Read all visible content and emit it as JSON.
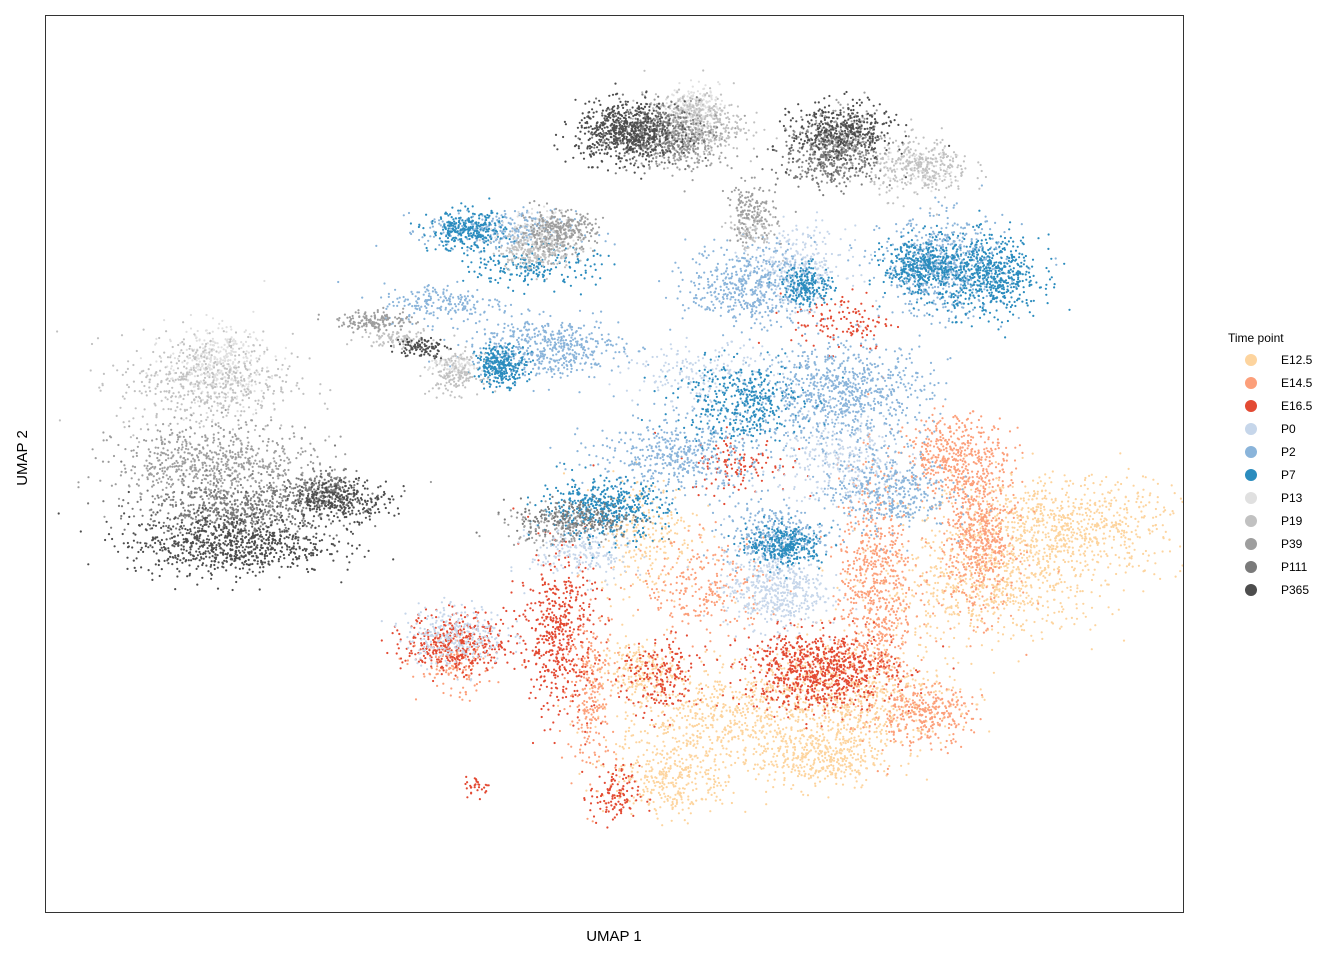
{
  "chart_data": {
    "type": "scatter",
    "title": "",
    "xlabel": "UMAP 1",
    "ylabel": "UMAP 2",
    "xticks": "none",
    "yticks": "none",
    "grid": false,
    "legend": {
      "title": "Time point",
      "placement": "right",
      "entries": [
        {
          "label": "E12.5",
          "color": "#FDD49E"
        },
        {
          "label": "E14.5",
          "color": "#FC9F7A"
        },
        {
          "label": "E16.5",
          "color": "#E34A33"
        },
        {
          "label": "P0",
          "color": "#C6D6EA"
        },
        {
          "label": "P2",
          "color": "#8AB4DA"
        },
        {
          "label": "P7",
          "color": "#2B8CBE"
        },
        {
          "label": "P13",
          "color": "#E0E0E0"
        },
        {
          "label": "P19",
          "color": "#C1C1C1"
        },
        {
          "label": "P39",
          "color": "#9E9E9E"
        },
        {
          "label": "P111",
          "color": "#7A7A7A"
        },
        {
          "label": "P365",
          "color": "#4D4D4D"
        }
      ]
    },
    "xlim": [
      0,
      100
    ],
    "ylim": [
      0,
      100
    ],
    "series": [
      {
        "name": "E12.5",
        "clusters": [
          [
            89,
            43,
            10,
            5,
            900
          ],
          [
            83,
            36,
            9,
            5,
            600
          ],
          [
            71,
            24,
            8,
            6,
            700
          ],
          [
            60,
            22,
            9,
            5,
            600
          ],
          [
            55,
            15,
            5,
            4,
            350
          ],
          [
            68,
            17,
            5,
            3,
            350
          ],
          [
            53,
            42,
            4,
            6,
            250
          ],
          [
            52,
            27,
            3,
            3,
            200
          ]
        ]
      },
      {
        "name": "E14.5",
        "clusters": [
          [
            73,
            36,
            3,
            12,
            700
          ],
          [
            82,
            42,
            3,
            8,
            600
          ],
          [
            80,
            51,
            4,
            4,
            400
          ],
          [
            77,
            22,
            4,
            3,
            300
          ],
          [
            48,
            25,
            2,
            8,
            250
          ],
          [
            58,
            36,
            5,
            5,
            250
          ],
          [
            36,
            27,
            3,
            3,
            120
          ]
        ]
      },
      {
        "name": "E16.5",
        "clusters": [
          [
            68,
            27,
            6,
            4,
            800
          ],
          [
            45,
            31,
            3,
            8,
            500
          ],
          [
            36,
            30,
            4,
            3,
            400
          ],
          [
            54,
            26,
            3,
            4,
            200
          ],
          [
            50,
            13,
            2,
            3,
            120
          ],
          [
            70,
            66,
            4,
            3,
            120
          ],
          [
            38,
            14,
            1,
            1,
            30
          ],
          [
            61,
            50,
            4,
            3,
            120
          ]
        ]
      },
      {
        "name": "P0",
        "clusters": [
          [
            64,
            36,
            4,
            4,
            500
          ],
          [
            36,
            31,
            4,
            3,
            300
          ],
          [
            70,
            50,
            5,
            5,
            300
          ],
          [
            66,
            72,
            4,
            4,
            300
          ],
          [
            47,
            40,
            4,
            3,
            200
          ],
          [
            58,
            60,
            6,
            3,
            200
          ]
        ]
      },
      {
        "name": "P2",
        "clusters": [
          [
            70,
            58,
            7,
            5,
            800
          ],
          [
            79,
            72,
            5,
            5,
            600
          ],
          [
            44,
            63,
            6,
            3,
            500
          ],
          [
            56,
            51,
            7,
            4,
            500
          ],
          [
            62,
            70,
            5,
            4,
            500
          ],
          [
            40,
            76,
            6,
            2,
            300
          ],
          [
            35,
            68,
            5,
            2,
            200
          ],
          [
            64,
            42,
            4,
            3,
            300
          ],
          [
            74,
            47,
            5,
            4,
            400
          ]
        ]
      },
      {
        "name": "P7",
        "clusters": [
          [
            83,
            71,
            4,
            4,
            600
          ],
          [
            77,
            72,
            3,
            3,
            400
          ],
          [
            40,
            61,
            2,
            2,
            300
          ],
          [
            49,
            45,
            5,
            3,
            500
          ],
          [
            65,
            41,
            3,
            2,
            300
          ],
          [
            37,
            76,
            3,
            2,
            300
          ],
          [
            67,
            70,
            2,
            2,
            200
          ],
          [
            61,
            57,
            5,
            4,
            400
          ],
          [
            43,
            72,
            5,
            2,
            200
          ]
        ]
      },
      {
        "name": "P13",
        "clusters": [
          [
            15,
            61,
            4,
            4,
            400
          ],
          [
            57,
            90,
            2,
            2,
            200
          ],
          [
            44,
            76,
            3,
            2,
            150
          ],
          [
            77,
            83,
            3,
            2,
            100
          ],
          [
            36,
            61,
            2,
            1,
            100
          ]
        ]
      },
      {
        "name": "P19",
        "clusters": [
          [
            14,
            59,
            7,
            5,
            500
          ],
          [
            57,
            88,
            4,
            3,
            400
          ],
          [
            43,
            74,
            3,
            2,
            250
          ],
          [
            77,
            83,
            4,
            3,
            300
          ],
          [
            31,
            64,
            3,
            1,
            100
          ],
          [
            36,
            60,
            2,
            2,
            150
          ],
          [
            62,
            76,
            2,
            2,
            100
          ]
        ]
      },
      {
        "name": "P39",
        "clusters": [
          [
            15,
            50,
            8,
            4,
            700
          ],
          [
            45,
            76,
            3,
            2,
            300
          ],
          [
            56,
            86,
            4,
            3,
            300
          ],
          [
            70,
            86,
            3,
            3,
            300
          ],
          [
            62,
            78,
            2,
            3,
            150
          ],
          [
            29,
            66,
            3,
            1,
            150
          ],
          [
            45,
            43,
            4,
            2,
            150
          ]
        ]
      },
      {
        "name": "P111",
        "clusters": [
          [
            17,
            45,
            8,
            3,
            600
          ],
          [
            53,
            87,
            4,
            3,
            400
          ],
          [
            69,
            84,
            4,
            3,
            300
          ],
          [
            24,
            47,
            3,
            2,
            200
          ],
          [
            47,
            44,
            5,
            2,
            200
          ]
        ]
      },
      {
        "name": "P365",
        "clusters": [
          [
            16,
            41,
            8,
            3,
            800
          ],
          [
            51,
            87,
            4,
            3,
            600
          ],
          [
            70,
            87,
            4,
            3,
            400
          ],
          [
            26,
            46,
            4,
            2,
            300
          ],
          [
            33,
            63,
            2,
            1,
            100
          ]
        ]
      }
    ]
  }
}
